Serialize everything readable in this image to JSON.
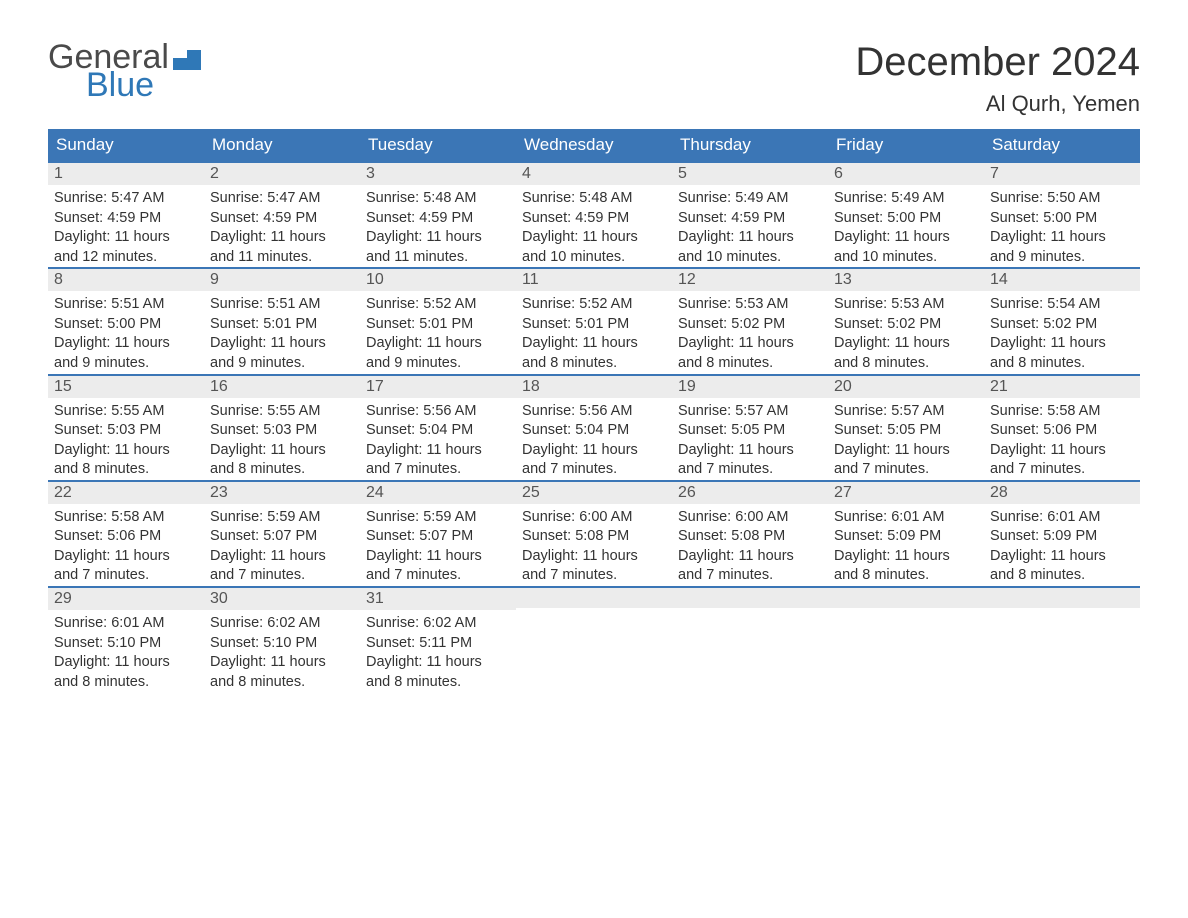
{
  "logo": {
    "text1": "General",
    "text2": "Blue",
    "accent_color": "#2f78b7"
  },
  "title": "December 2024",
  "location": "Al Qurh, Yemen",
  "colors": {
    "header_bg": "#3b76b6",
    "header_text": "#ffffff",
    "day_bar_bg": "#ececec",
    "day_bar_border": "#3b76b6",
    "body_text": "#333333"
  },
  "day_headers": [
    "Sunday",
    "Monday",
    "Tuesday",
    "Wednesday",
    "Thursday",
    "Friday",
    "Saturday"
  ],
  "weeks": [
    [
      {
        "n": "1",
        "sr": "5:47 AM",
        "ss": "4:59 PM",
        "dl": "11 hours and 12 minutes."
      },
      {
        "n": "2",
        "sr": "5:47 AM",
        "ss": "4:59 PM",
        "dl": "11 hours and 11 minutes."
      },
      {
        "n": "3",
        "sr": "5:48 AM",
        "ss": "4:59 PM",
        "dl": "11 hours and 11 minutes."
      },
      {
        "n": "4",
        "sr": "5:48 AM",
        "ss": "4:59 PM",
        "dl": "11 hours and 10 minutes."
      },
      {
        "n": "5",
        "sr": "5:49 AM",
        "ss": "4:59 PM",
        "dl": "11 hours and 10 minutes."
      },
      {
        "n": "6",
        "sr": "5:49 AM",
        "ss": "5:00 PM",
        "dl": "11 hours and 10 minutes."
      },
      {
        "n": "7",
        "sr": "5:50 AM",
        "ss": "5:00 PM",
        "dl": "11 hours and 9 minutes."
      }
    ],
    [
      {
        "n": "8",
        "sr": "5:51 AM",
        "ss": "5:00 PM",
        "dl": "11 hours and 9 minutes."
      },
      {
        "n": "9",
        "sr": "5:51 AM",
        "ss": "5:01 PM",
        "dl": "11 hours and 9 minutes."
      },
      {
        "n": "10",
        "sr": "5:52 AM",
        "ss": "5:01 PM",
        "dl": "11 hours and 9 minutes."
      },
      {
        "n": "11",
        "sr": "5:52 AM",
        "ss": "5:01 PM",
        "dl": "11 hours and 8 minutes."
      },
      {
        "n": "12",
        "sr": "5:53 AM",
        "ss": "5:02 PM",
        "dl": "11 hours and 8 minutes."
      },
      {
        "n": "13",
        "sr": "5:53 AM",
        "ss": "5:02 PM",
        "dl": "11 hours and 8 minutes."
      },
      {
        "n": "14",
        "sr": "5:54 AM",
        "ss": "5:02 PM",
        "dl": "11 hours and 8 minutes."
      }
    ],
    [
      {
        "n": "15",
        "sr": "5:55 AM",
        "ss": "5:03 PM",
        "dl": "11 hours and 8 minutes."
      },
      {
        "n": "16",
        "sr": "5:55 AM",
        "ss": "5:03 PM",
        "dl": "11 hours and 8 minutes."
      },
      {
        "n": "17",
        "sr": "5:56 AM",
        "ss": "5:04 PM",
        "dl": "11 hours and 7 minutes."
      },
      {
        "n": "18",
        "sr": "5:56 AM",
        "ss": "5:04 PM",
        "dl": "11 hours and 7 minutes."
      },
      {
        "n": "19",
        "sr": "5:57 AM",
        "ss": "5:05 PM",
        "dl": "11 hours and 7 minutes."
      },
      {
        "n": "20",
        "sr": "5:57 AM",
        "ss": "5:05 PM",
        "dl": "11 hours and 7 minutes."
      },
      {
        "n": "21",
        "sr": "5:58 AM",
        "ss": "5:06 PM",
        "dl": "11 hours and 7 minutes."
      }
    ],
    [
      {
        "n": "22",
        "sr": "5:58 AM",
        "ss": "5:06 PM",
        "dl": "11 hours and 7 minutes."
      },
      {
        "n": "23",
        "sr": "5:59 AM",
        "ss": "5:07 PM",
        "dl": "11 hours and 7 minutes."
      },
      {
        "n": "24",
        "sr": "5:59 AM",
        "ss": "5:07 PM",
        "dl": "11 hours and 7 minutes."
      },
      {
        "n": "25",
        "sr": "6:00 AM",
        "ss": "5:08 PM",
        "dl": "11 hours and 7 minutes."
      },
      {
        "n": "26",
        "sr": "6:00 AM",
        "ss": "5:08 PM",
        "dl": "11 hours and 7 minutes."
      },
      {
        "n": "27",
        "sr": "6:01 AM",
        "ss": "5:09 PM",
        "dl": "11 hours and 8 minutes."
      },
      {
        "n": "28",
        "sr": "6:01 AM",
        "ss": "5:09 PM",
        "dl": "11 hours and 8 minutes."
      }
    ],
    [
      {
        "n": "29",
        "sr": "6:01 AM",
        "ss": "5:10 PM",
        "dl": "11 hours and 8 minutes."
      },
      {
        "n": "30",
        "sr": "6:02 AM",
        "ss": "5:10 PM",
        "dl": "11 hours and 8 minutes."
      },
      {
        "n": "31",
        "sr": "6:02 AM",
        "ss": "5:11 PM",
        "dl": "11 hours and 8 minutes."
      },
      null,
      null,
      null,
      null
    ]
  ],
  "labels": {
    "sunrise": "Sunrise:",
    "sunset": "Sunset:",
    "daylight": "Daylight:"
  }
}
